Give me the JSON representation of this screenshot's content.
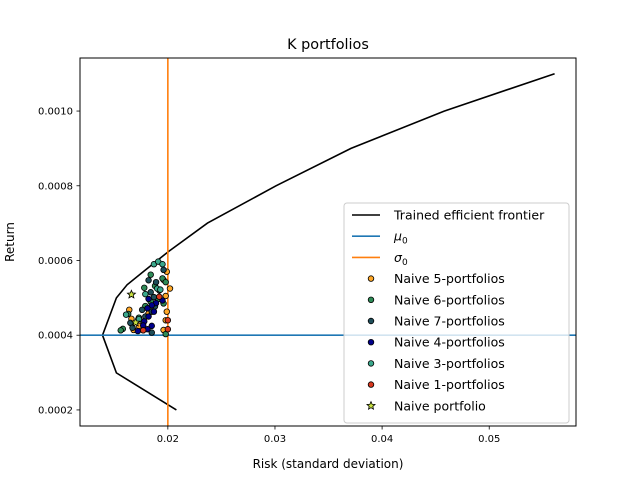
{
  "chart_data": {
    "type": "scatter",
    "title": "K portfolios",
    "xlabel": "Risk (standard deviation)",
    "ylabel": "Return",
    "xlim": [
      0.0118,
      0.0581
    ],
    "ylim": [
      0.000157,
      0.001142
    ],
    "x_ticks": [
      0.02,
      0.03,
      0.04,
      0.05
    ],
    "x_tick_labels": [
      "0.02",
      "0.03",
      "0.04",
      "0.05"
    ],
    "y_ticks": [
      0.0002,
      0.0004,
      0.0006,
      0.0008,
      0.001
    ],
    "y_tick_labels": [
      "0.0002",
      "0.0004",
      "0.0006",
      "0.0008",
      "0.0010"
    ],
    "grid": false,
    "legend_position": "lower-right",
    "lines": [
      {
        "name": "Trained efficient frontier",
        "color": "#000000",
        "points": [
          [
            0.0208,
            0.0002
          ],
          [
            0.0152,
            0.000299
          ],
          [
            0.0139,
            0.0004
          ],
          [
            0.0152,
            0.0005
          ],
          [
            0.0162,
            0.000535
          ],
          [
            0.0177,
            0.00057
          ],
          [
            0.0201,
            0.000625
          ],
          [
            0.0237,
            0.0007
          ],
          [
            0.0301,
            0.0008
          ],
          [
            0.0371,
            0.0009
          ],
          [
            0.0458,
            0.001
          ],
          [
            0.0561,
            0.0011
          ]
        ]
      }
    ],
    "hlines": [
      {
        "name": "μ0",
        "y": 0.0004,
        "color": "#1f77b4"
      }
    ],
    "vlines": [
      {
        "name": "σ0",
        "x": 0.02,
        "color": "#ff7f0e"
      }
    ],
    "series": [
      {
        "name": "Naive 5-portfolios",
        "marker": "circle",
        "color": "#ffa726",
        "points": [
          [
            0.0199,
            0.00057
          ],
          [
            0.0202,
            0.000525
          ],
          [
            0.0198,
            0.000505
          ],
          [
            0.0199,
            0.000463
          ],
          [
            0.0198,
            0.00044
          ],
          [
            0.0196,
            0.000414
          ],
          [
            0.0166,
            0.000444
          ],
          [
            0.0164,
            0.000468
          ],
          [
            0.0173,
            0.000425
          ],
          [
            0.0168,
            0.000414
          ],
          [
            0.0182,
            0.000458
          ],
          [
            0.0196,
            0.000548
          ]
        ]
      },
      {
        "name": "Naive 6-portfolios",
        "marker": "circle",
        "color": "#2e8b57",
        "points": [
          [
            0.0184,
            0.000562
          ],
          [
            0.0195,
            0.000552
          ],
          [
            0.0198,
            0.000542
          ],
          [
            0.0188,
            0.000532
          ],
          [
            0.0178,
            0.000527
          ],
          [
            0.0191,
            0.000497
          ],
          [
            0.0196,
            0.000485
          ],
          [
            0.0184,
            0.00049
          ],
          [
            0.0179,
            0.000478
          ],
          [
            0.0163,
            0.000457
          ],
          [
            0.0173,
            0.000447
          ],
          [
            0.0177,
            0.000437
          ],
          [
            0.0158,
            0.000417
          ],
          [
            0.0156,
            0.000413
          ],
          [
            0.0198,
            0.000403
          ]
        ]
      },
      {
        "name": "Naive 7-portfolios",
        "marker": "circle",
        "color": "#1f4e5a",
        "points": [
          [
            0.0196,
            0.000575
          ],
          [
            0.0182,
            0.000547
          ],
          [
            0.0189,
            0.000542
          ],
          [
            0.0192,
            0.00052
          ],
          [
            0.0184,
            0.000515
          ],
          [
            0.0187,
            0.000502
          ],
          [
            0.0188,
            0.000477
          ],
          [
            0.0176,
            0.000468
          ],
          [
            0.0185,
            0.000463
          ],
          [
            0.0179,
            0.00045
          ],
          [
            0.0165,
            0.000433
          ],
          [
            0.0167,
            0.00042
          ],
          [
            0.0185,
            0.000407
          ]
        ]
      },
      {
        "name": "Naive 4-portfolios",
        "marker": "circle",
        "color": "#00008b",
        "points": [
          [
            0.0182,
            0.000497
          ],
          [
            0.0195,
            0.000493
          ],
          [
            0.0189,
            0.000486
          ],
          [
            0.0185,
            0.00048
          ],
          [
            0.0181,
            0.000472
          ],
          [
            0.0187,
            0.000463
          ],
          [
            0.0182,
            0.00045
          ],
          [
            0.0178,
            0.000437
          ],
          [
            0.0185,
            0.000425
          ],
          [
            0.0181,
            0.000416
          ],
          [
            0.0177,
            0.000426
          ],
          [
            0.0172,
            0.000411
          ]
        ]
      },
      {
        "name": "Naive 3-portfolios",
        "marker": "circle",
        "color": "#3aa88c",
        "points": [
          [
            0.0187,
            0.00059
          ],
          [
            0.0191,
            0.000597
          ],
          [
            0.0195,
            0.00059
          ],
          [
            0.019,
            0.000525
          ],
          [
            0.0179,
            0.00051
          ],
          [
            0.0193,
            0.000522
          ],
          [
            0.0173,
            0.000443
          ],
          [
            0.0161,
            0.000455
          ]
        ]
      },
      {
        "name": "Naive 1-portfolios",
        "marker": "circle",
        "color": "#d9381e",
        "points": [
          [
            0.02,
            0.00044
          ],
          [
            0.02,
            0.000416
          ],
          [
            0.0192,
            0.000503
          ],
          [
            0.0177,
            0.000413
          ]
        ]
      },
      {
        "name": "Naive portfolio",
        "marker": "star",
        "color": "#c8e040",
        "points": [
          [
            0.0166,
            0.000509
          ],
          [
            0.017,
            0.000434
          ]
        ]
      }
    ]
  }
}
